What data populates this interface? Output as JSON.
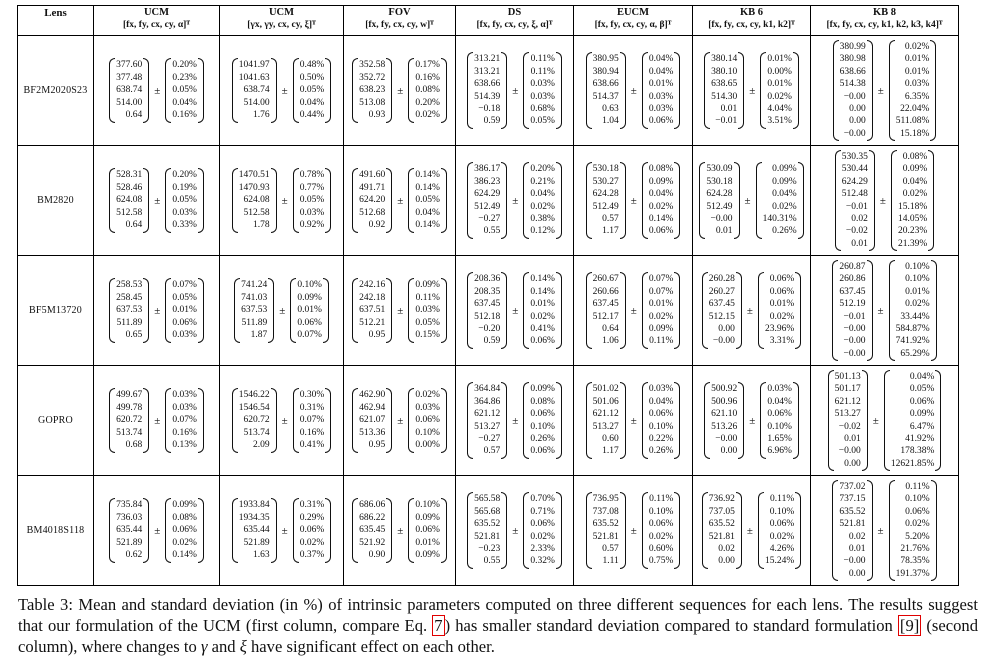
{
  "header": {
    "lens_label": "Lens",
    "columns": [
      {
        "name": "UCM",
        "vector": "[fx, fy, cx, cy, α]ᵀ"
      },
      {
        "name": "UCM",
        "vector": "[γx, γy, cx, cy, ξ]ᵀ"
      },
      {
        "name": "FOV",
        "vector": "[fx, fy, cx, cy, w]ᵀ"
      },
      {
        "name": "DS",
        "vector": "[fx, fy, cx, cy, ξ, α]ᵀ"
      },
      {
        "name": "EUCM",
        "vector": "[fx, fy, cx, cy, α, β]ᵀ"
      },
      {
        "name": "KB 6",
        "vector": "[fx, fy, cx, cy, k1, k2]ᵀ"
      },
      {
        "name": "KB 8",
        "vector": "[fx, fy, cx, cy, k1, k2, k3, k4]ᵀ"
      }
    ]
  },
  "rows": [
    {
      "lens": "BF2M2020S23",
      "cells": [
        {
          "mean": [
            "377.60",
            "377.48",
            "638.74",
            "514.00",
            "0.64"
          ],
          "std": [
            "0.20%",
            "0.23%",
            "0.05%",
            "0.04%",
            "0.16%"
          ]
        },
        {
          "mean": [
            "1041.97",
            "1041.63",
            "638.74",
            "514.00",
            "1.76"
          ],
          "std": [
            "0.48%",
            "0.50%",
            "0.05%",
            "0.04%",
            "0.44%"
          ]
        },
        {
          "mean": [
            "352.58",
            "352.72",
            "638.23",
            "513.08",
            "0.93"
          ],
          "std": [
            "0.17%",
            "0.16%",
            "0.08%",
            "0.20%",
            "0.02%"
          ]
        },
        {
          "mean": [
            "313.21",
            "313.21",
            "638.66",
            "514.39",
            "−0.18",
            "0.59"
          ],
          "std": [
            "0.11%",
            "0.11%",
            "0.03%",
            "0.03%",
            "0.68%",
            "0.05%"
          ]
        },
        {
          "mean": [
            "380.95",
            "380.94",
            "638.66",
            "514.37",
            "0.63",
            "1.04"
          ],
          "std": [
            "0.04%",
            "0.04%",
            "0.01%",
            "0.03%",
            "0.03%",
            "0.06%"
          ]
        },
        {
          "mean": [
            "380.14",
            "380.10",
            "638.65",
            "514.30",
            "0.01",
            "−0.01"
          ],
          "std": [
            "0.01%",
            "0.00%",
            "0.01%",
            "0.02%",
            "4.04%",
            "3.51%"
          ]
        },
        {
          "mean": [
            "380.99",
            "380.98",
            "638.66",
            "514.38",
            "−0.00",
            "0.00",
            "0.00",
            "−0.00"
          ],
          "std": [
            "0.02%",
            "0.01%",
            "0.01%",
            "0.03%",
            "6.35%",
            "22.04%",
            "511.08%",
            "15.18%"
          ]
        }
      ]
    },
    {
      "lens": "BM2820",
      "cells": [
        {
          "mean": [
            "528.31",
            "528.46",
            "624.08",
            "512.58",
            "0.64"
          ],
          "std": [
            "0.20%",
            "0.19%",
            "0.05%",
            "0.03%",
            "0.33%"
          ]
        },
        {
          "mean": [
            "1470.51",
            "1470.93",
            "624.08",
            "512.58",
            "1.78"
          ],
          "std": [
            "0.78%",
            "0.77%",
            "0.05%",
            "0.03%",
            "0.92%"
          ]
        },
        {
          "mean": [
            "491.60",
            "491.71",
            "624.20",
            "512.68",
            "0.92"
          ],
          "std": [
            "0.14%",
            "0.14%",
            "0.05%",
            "0.04%",
            "0.14%"
          ]
        },
        {
          "mean": [
            "386.17",
            "386.23",
            "624.29",
            "512.49",
            "−0.27",
            "0.55"
          ],
          "std": [
            "0.20%",
            "0.21%",
            "0.04%",
            "0.02%",
            "0.38%",
            "0.12%"
          ]
        },
        {
          "mean": [
            "530.18",
            "530.27",
            "624.28",
            "512.49",
            "0.57",
            "1.17"
          ],
          "std": [
            "0.08%",
            "0.09%",
            "0.04%",
            "0.02%",
            "0.14%",
            "0.06%"
          ]
        },
        {
          "mean": [
            "530.09",
            "530.18",
            "624.28",
            "512.49",
            "−0.00",
            "0.01"
          ],
          "std": [
            "0.09%",
            "0.09%",
            "0.04%",
            "0.02%",
            "140.31%",
            "0.26%"
          ]
        },
        {
          "mean": [
            "530.35",
            "530.44",
            "624.29",
            "512.48",
            "−0.01",
            "0.02",
            "−0.02",
            "0.01"
          ],
          "std": [
            "0.08%",
            "0.09%",
            "0.04%",
            "0.02%",
            "15.18%",
            "14.05%",
            "20.23%",
            "21.39%"
          ]
        }
      ]
    },
    {
      "lens": "BF5M13720",
      "cells": [
        {
          "mean": [
            "258.53",
            "258.45",
            "637.53",
            "511.89",
            "0.65"
          ],
          "std": [
            "0.07%",
            "0.05%",
            "0.01%",
            "0.06%",
            "0.03%"
          ]
        },
        {
          "mean": [
            "741.24",
            "741.03",
            "637.53",
            "511.89",
            "1.87"
          ],
          "std": [
            "0.10%",
            "0.09%",
            "0.01%",
            "0.06%",
            "0.07%"
          ]
        },
        {
          "mean": [
            "242.16",
            "242.18",
            "637.51",
            "512.21",
            "0.95"
          ],
          "std": [
            "0.09%",
            "0.11%",
            "0.03%",
            "0.05%",
            "0.15%"
          ]
        },
        {
          "mean": [
            "208.36",
            "208.35",
            "637.45",
            "512.18",
            "−0.20",
            "0.59"
          ],
          "std": [
            "0.14%",
            "0.14%",
            "0.01%",
            "0.02%",
            "0.41%",
            "0.06%"
          ]
        },
        {
          "mean": [
            "260.67",
            "260.66",
            "637.45",
            "512.17",
            "0.64",
            "1.06"
          ],
          "std": [
            "0.07%",
            "0.07%",
            "0.01%",
            "0.02%",
            "0.09%",
            "0.11%"
          ]
        },
        {
          "mean": [
            "260.28",
            "260.27",
            "637.45",
            "512.15",
            "0.00",
            "−0.00"
          ],
          "std": [
            "0.06%",
            "0.06%",
            "0.01%",
            "0.02%",
            "23.96%",
            "3.31%"
          ]
        },
        {
          "mean": [
            "260.87",
            "260.86",
            "637.45",
            "512.19",
            "−0.01",
            "−0.00",
            "−0.00",
            "−0.00"
          ],
          "std": [
            "0.10%",
            "0.10%",
            "0.01%",
            "0.02%",
            "33.44%",
            "584.87%",
            "741.92%",
            "65.29%"
          ]
        }
      ]
    },
    {
      "lens": "GOPRO",
      "cells": [
        {
          "mean": [
            "499.67",
            "499.78",
            "620.72",
            "513.74",
            "0.68"
          ],
          "std": [
            "0.03%",
            "0.03%",
            "0.07%",
            "0.16%",
            "0.13%"
          ]
        },
        {
          "mean": [
            "1546.22",
            "1546.54",
            "620.72",
            "513.74",
            "2.09"
          ],
          "std": [
            "0.30%",
            "0.31%",
            "0.07%",
            "0.16%",
            "0.41%"
          ]
        },
        {
          "mean": [
            "462.90",
            "462.94",
            "621.07",
            "513.36",
            "0.95"
          ],
          "std": [
            "0.02%",
            "0.03%",
            "0.06%",
            "0.10%",
            "0.00%"
          ]
        },
        {
          "mean": [
            "364.84",
            "364.86",
            "621.12",
            "513.27",
            "−0.27",
            "0.57"
          ],
          "std": [
            "0.09%",
            "0.08%",
            "0.06%",
            "0.10%",
            "0.26%",
            "0.06%"
          ]
        },
        {
          "mean": [
            "501.02",
            "501.06",
            "621.12",
            "513.27",
            "0.60",
            "1.17"
          ],
          "std": [
            "0.03%",
            "0.04%",
            "0.06%",
            "0.10%",
            "0.22%",
            "0.26%"
          ]
        },
        {
          "mean": [
            "500.92",
            "500.96",
            "621.10",
            "513.26",
            "−0.00",
            "0.00"
          ],
          "std": [
            "0.03%",
            "0.04%",
            "0.06%",
            "0.10%",
            "1.65%",
            "6.96%"
          ]
        },
        {
          "mean": [
            "501.13",
            "501.17",
            "621.12",
            "513.27",
            "−0.02",
            "0.01",
            "−0.00",
            "0.00"
          ],
          "std": [
            "0.04%",
            "0.05%",
            "0.06%",
            "0.09%",
            "6.47%",
            "41.92%",
            "178.38%",
            "12621.85%"
          ]
        }
      ]
    },
    {
      "lens": "BM4018S118",
      "cells": [
        {
          "mean": [
            "735.84",
            "736.03",
            "635.44",
            "521.89",
            "0.62"
          ],
          "std": [
            "0.09%",
            "0.08%",
            "0.06%",
            "0.02%",
            "0.14%"
          ]
        },
        {
          "mean": [
            "1933.84",
            "1934.35",
            "635.44",
            "521.89",
            "1.63"
          ],
          "std": [
            "0.31%",
            "0.29%",
            "0.06%",
            "0.02%",
            "0.37%"
          ]
        },
        {
          "mean": [
            "686.06",
            "686.22",
            "635.45",
            "521.92",
            "0.90"
          ],
          "std": [
            "0.10%",
            "0.09%",
            "0.06%",
            "0.01%",
            "0.09%"
          ]
        },
        {
          "mean": [
            "565.58",
            "565.68",
            "635.52",
            "521.81",
            "−0.23",
            "0.55"
          ],
          "std": [
            "0.70%",
            "0.71%",
            "0.06%",
            "0.02%",
            "2.33%",
            "0.32%"
          ]
        },
        {
          "mean": [
            "736.95",
            "737.08",
            "635.52",
            "521.81",
            "0.57",
            "1.11"
          ],
          "std": [
            "0.11%",
            "0.10%",
            "0.06%",
            "0.02%",
            "0.60%",
            "0.75%"
          ]
        },
        {
          "mean": [
            "736.92",
            "737.05",
            "635.52",
            "521.81",
            "0.02",
            "0.00"
          ],
          "std": [
            "0.11%",
            "0.10%",
            "0.06%",
            "0.02%",
            "4.26%",
            "15.24%"
          ]
        },
        {
          "mean": [
            "737.02",
            "737.15",
            "635.52",
            "521.81",
            "0.02",
            "0.01",
            "−0.00",
            "0.00"
          ],
          "std": [
            "0.11%",
            "0.10%",
            "0.06%",
            "0.02%",
            "5.20%",
            "21.76%",
            "78.35%",
            "191.37%"
          ]
        }
      ]
    }
  ],
  "caption": {
    "p1": "Table 3: Mean and standard deviation (in %) of intrinsic parameters computed on three different sequences for each lens. The results suggest that our formulation of the UCM (first column, compare Eq. ",
    "ref_eq": "7",
    "p2": ") has smaller standard deviation compared to standard formulation ",
    "ref_cite": "[9]",
    "p3": " (second column), where changes to ",
    "gamma": "γ",
    "p4": " and ",
    "xi": "ξ",
    "p5": " have significant effect on each other."
  }
}
